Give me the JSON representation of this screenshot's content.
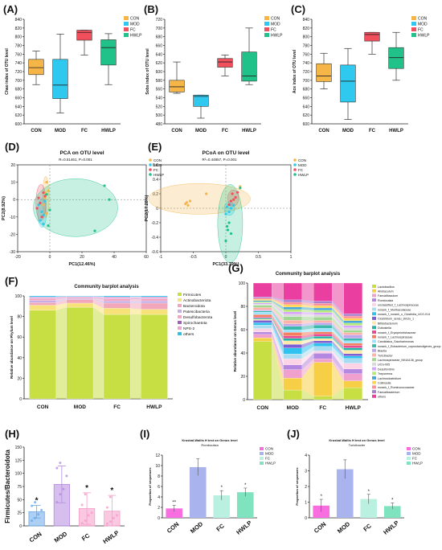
{
  "colors": {
    "CON": "#f5b547",
    "MOD": "#2fc9ef",
    "FC": "#f24f5d",
    "HWLP": "#21c28a"
  },
  "panels": [
    {
      "letter": "(A)",
      "ylabel": "Chao index of OTU level",
      "chart_data": {
        "type": "box",
        "categories": [
          "CON",
          "MOD",
          "FC",
          "HWLP"
        ],
        "legend": [
          "CON",
          "MOD",
          "FC",
          "HWLP"
        ],
        "ylim": [
          600,
          840
        ],
        "ticks": [
          600,
          620,
          640,
          660,
          680,
          700,
          720,
          740,
          760,
          780,
          800,
          820,
          840
        ],
        "boxes": [
          {
            "min": 690,
            "q1": 713,
            "median": 729,
            "q3": 748,
            "max": 767
          },
          {
            "min": 625,
            "q1": 658,
            "median": 689,
            "q3": 748,
            "max": 806
          },
          {
            "min": 758,
            "q1": 792,
            "median": 810,
            "q3": 815,
            "max": 815
          },
          {
            "min": 690,
            "q1": 735,
            "median": 775,
            "q3": 793,
            "max": 807
          }
        ]
      }
    },
    {
      "letter": "(B)",
      "ylabel": "Sobs index of OTU level",
      "chart_data": {
        "type": "box",
        "categories": [
          "CON",
          "MOD",
          "FC",
          "HWLP"
        ],
        "legend": [
          "CON",
          "MOD",
          "FC",
          "HWLP"
        ],
        "ylim": [
          480,
          720
        ],
        "ticks": [
          480,
          500,
          520,
          540,
          560,
          580,
          600,
          620,
          640,
          660,
          680,
          700,
          720
        ],
        "boxes": [
          {
            "min": 550,
            "q1": 553,
            "median": 565,
            "q3": 580,
            "max": 622
          },
          {
            "min": 493,
            "q1": 520,
            "median": 543,
            "q3": 546,
            "max": 546
          },
          {
            "min": 590,
            "q1": 610,
            "median": 622,
            "q3": 630,
            "max": 638
          },
          {
            "min": 570,
            "q1": 578,
            "median": 590,
            "q3": 645,
            "max": 700
          }
        ]
      }
    },
    {
      "letter": "(C)",
      "ylabel": "Ace index of OTU level",
      "chart_data": {
        "type": "box",
        "categories": [
          "CON",
          "MOD",
          "FC",
          "HWLP"
        ],
        "legend": [
          "CON",
          "MOD",
          "FC",
          "HWLP"
        ],
        "ylim": [
          600,
          840
        ],
        "ticks": [
          600,
          620,
          640,
          660,
          680,
          700,
          720,
          740,
          760,
          780,
          800,
          820,
          840
        ],
        "boxes": [
          {
            "min": 680,
            "q1": 697,
            "median": 710,
            "q3": 738,
            "max": 762
          },
          {
            "min": 610,
            "q1": 650,
            "median": 698,
            "q3": 735,
            "max": 773
          },
          {
            "min": 760,
            "q1": 790,
            "median": 805,
            "q3": 810,
            "max": 810
          },
          {
            "min": 700,
            "q1": 727,
            "median": 752,
            "q3": 775,
            "max": 810
          }
        ]
      }
    },
    {
      "letter": "(D)",
      "title": "PCA on OTU level",
      "stat": "R=0.51461, P=0.001",
      "xlabel": "PC1(12.46%)",
      "ylabel": "PC2(8.92%)",
      "chart_data": {
        "type": "scatter",
        "legend": [
          "CON",
          "MOD",
          "FC",
          "HWLP"
        ],
        "xlim": [
          -20,
          60
        ],
        "xticks": [
          -20,
          0,
          20,
          40,
          60
        ],
        "ylim": [
          -30,
          20
        ],
        "yticks": [
          -30,
          -20,
          -10,
          0,
          10,
          20
        ],
        "points": {
          "CON": [
            [
              -2,
              10
            ],
            [
              -1,
              5
            ],
            [
              -3,
              1
            ],
            [
              -4,
              -3
            ],
            [
              -2,
              -8
            ],
            [
              -3,
              4
            ]
          ],
          "MOD": [
            [
              -4,
              -9
            ],
            [
              -6,
              -12
            ],
            [
              -5,
              -7
            ],
            [
              -7,
              -3
            ],
            [
              -3,
              -1
            ],
            [
              -4,
              -14
            ]
          ],
          "FC": [
            [
              -6,
              -2
            ],
            [
              -4,
              4
            ],
            [
              -7,
              1
            ],
            [
              -3,
              2
            ],
            [
              -8,
              -5
            ],
            [
              -5,
              -10
            ]
          ],
          "HWLP": [
            [
              34,
              8
            ],
            [
              37,
              0
            ],
            [
              28,
              -18
            ],
            [
              -1,
              -15
            ],
            [
              -2,
              3
            ],
            [
              0,
              -6
            ]
          ]
        }
      }
    },
    {
      "letter": "(E)",
      "title": "PCoA on OTU level",
      "stat": "R²=0.44857, P=0.001",
      "xlabel": "PC1(33.79%)",
      "ylabel": "PC2(17.28%)",
      "chart_data": {
        "type": "scatter",
        "legend": [
          "CON",
          "MOD",
          "FC",
          "HWLP"
        ],
        "xlim": [
          -1,
          1
        ],
        "xticks": [
          -1,
          -0.5,
          0,
          0.5,
          1
        ],
        "ylim": [
          -0.6,
          0.6
        ],
        "yticks": [
          -0.6,
          -0.4,
          -0.2,
          0,
          0.2,
          0.4,
          0.6
        ],
        "points": {
          "CON": [
            [
              -0.6,
              0.08
            ],
            [
              -0.55,
              0.1
            ],
            [
              -0.58,
              0.04
            ],
            [
              -0.3,
              0.2
            ],
            [
              -0.62,
              0.06
            ],
            [
              0.22,
              0.3
            ]
          ],
          "MOD": [
            [
              0.05,
              -0.05
            ],
            [
              0.02,
              0.02
            ],
            [
              0.08,
              0.0
            ],
            [
              0.12,
              0.04
            ],
            [
              0.0,
              -0.08
            ],
            [
              0.06,
              0.05
            ]
          ],
          "FC": [
            [
              0.05,
              0.05
            ],
            [
              0.12,
              0.12
            ],
            [
              0.1,
              0.2
            ],
            [
              0.18,
              0.22
            ],
            [
              0.15,
              0.15
            ],
            [
              0.08,
              0.1
            ]
          ],
          "HWLP": [
            [
              0.0,
              -0.45
            ],
            [
              0.03,
              -0.3
            ],
            [
              0.05,
              -0.2
            ],
            [
              0.08,
              -0.35
            ],
            [
              0.02,
              -0.25
            ],
            [
              0.22,
              0.28
            ]
          ]
        }
      }
    },
    {
      "letter": "(F)",
      "title": "Community barplot analysis",
      "ylabel": "Relative abundance on Phylum level",
      "chart_data": {
        "type": "bar",
        "categories": [
          "CON",
          "MOD",
          "FC",
          "HWLP"
        ],
        "ylim": [
          0,
          100
        ],
        "yticks": [
          0,
          20,
          40,
          60,
          80,
          100
        ],
        "series": [
          {
            "name": "Firmicutes",
            "color": "#c8df44",
            "values": [
              86,
              89,
              82,
              82
            ]
          },
          {
            "name": "Actinobacteriota",
            "color": "#f7e27a",
            "values": [
              5,
              4,
              6,
              5
            ]
          },
          {
            "name": "Bacteroidota",
            "color": "#f2a6b9",
            "values": [
              2.5,
              3.5,
              5,
              6
            ]
          },
          {
            "name": "Patescibacteria",
            "color": "#c5aee6",
            "values": [
              2,
              1,
              2,
              2
            ]
          },
          {
            "name": "Desulfobacterota",
            "color": "#f4a5c4",
            "values": [
              2,
              1,
              2,
              2
            ]
          },
          {
            "name": "Spirochaetota",
            "color": "#9d5fc4",
            "values": [
              0.5,
              0.4,
              0.5,
              0.5
            ]
          },
          {
            "name": "NPS-2",
            "color": "#f4a0cf",
            "values": [
              1,
              0.6,
              1.5,
              1.5
            ]
          },
          {
            "name": "others",
            "color": "#25c4ef",
            "values": [
              1,
              0.5,
              1,
              1
            ]
          }
        ]
      }
    },
    {
      "letter": "(G)",
      "title": "Community barplot analysis",
      "ylabel": "Relative abundance on Genus level",
      "chart_data": {
        "type": "bar",
        "categories": [
          "CON",
          "MOD",
          "FC",
          "HWLP"
        ],
        "ylim": [
          0,
          100
        ],
        "yticks": [
          0,
          20,
          40,
          60,
          80,
          100
        ],
        "series": [
          {
            "name": "Lactobacillus",
            "color": "#c8df44",
            "values": [
              50,
              8,
              3,
              10
            ]
          },
          {
            "name": "Allobaculum",
            "color": "#f7cf46",
            "values": [
              3,
              10,
              30,
              6
            ]
          },
          {
            "name": "Faecalibaculum",
            "color": "#f0a0cc",
            "values": [
              3,
              7,
              3,
              6
            ]
          },
          {
            "name": "Romboutsia",
            "color": "#b487e0",
            "values": [
              2,
              4,
              5,
              4
            ]
          },
          {
            "name": "unclassified_f_Lachnospiraceae",
            "color": "#fdd3e6",
            "values": [
              3,
              5,
              2,
              5
            ]
          },
          {
            "name": "norank_f_Muribaculaceae",
            "color": "#a8dcf0",
            "values": [
              3,
              4,
              4,
              4
            ]
          },
          {
            "name": "norank_f_norank_o_Clostridia_UCG-014",
            "color": "#2ec2ef",
            "values": [
              2,
              5,
              3,
              2
            ]
          },
          {
            "name": "Clostridium_sensu_stricto_1",
            "color": "#7c5fd2",
            "values": [
              2,
              3,
              2,
              2
            ]
          },
          {
            "name": "Bifidobacterium",
            "color": "#ffe9a8",
            "values": [
              1,
              3,
              2,
              3
            ]
          },
          {
            "name": "Dubosiella",
            "color": "#22b4a4",
            "values": [
              1,
              2,
              2,
              2
            ]
          },
          {
            "name": "norank_f_Erysipelotrichaceae",
            "color": "#e64a94",
            "values": [
              1,
              2,
              2,
              2
            ]
          },
          {
            "name": "norank_f_Lachnospiraceae",
            "color": "#f57e5f",
            "values": [
              2,
              3,
              2,
              2
            ]
          },
          {
            "name": "Candidatus_Saccharimonas",
            "color": "#9be3ff",
            "values": [
              2,
              2,
              3,
              2
            ]
          },
          {
            "name": "norank_f_Eubacterium_coprostanoligenes_group",
            "color": "#3db8ad",
            "values": [
              1,
              3,
              3,
              2
            ]
          },
          {
            "name": "Blautia",
            "color": "#c0a7ec",
            "values": [
              1,
              2,
              2,
              3
            ]
          },
          {
            "name": "Turicibacter",
            "color": "#ffb2a6",
            "values": [
              2,
              3,
              2,
              2
            ]
          },
          {
            "name": "Lachnospiraceae_NK4A136_group",
            "color": "#a1d891",
            "values": [
              2,
              3,
              3,
              2
            ]
          },
          {
            "name": "UCG-005",
            "color": "#d9d9d9",
            "values": [
              1,
              2,
              2,
              2
            ]
          },
          {
            "name": "Desulfovibrio",
            "color": "#d7a4ff",
            "values": [
              1,
              2,
              2,
              2
            ]
          },
          {
            "name": "Treponema",
            "color": "#b4ea78",
            "values": [
              1,
              2,
              2,
              2
            ]
          },
          {
            "name": "Lachnoclostridium",
            "color": "#46a7d8",
            "values": [
              1,
              2,
              2,
              2
            ]
          },
          {
            "name": "Collinsella",
            "color": "#ffd54f",
            "values": [
              1,
              2,
              2,
              2
            ]
          },
          {
            "name": "norank_f_Ruminococcaceae",
            "color": "#ff8f98",
            "values": [
              1,
              2,
              2,
              2
            ]
          },
          {
            "name": "Faecalibacterium",
            "color": "#a87fcf",
            "values": [
              1,
              2,
              2,
              2
            ]
          },
          {
            "name": "others",
            "color": "#ea3fa0",
            "values": [
              12,
              14,
              16,
              26
            ]
          }
        ]
      }
    },
    {
      "letter": "(H)",
      "ylabel": "Firmicutes/Bacteroidota",
      "chart_data": {
        "type": "bar",
        "categories": [
          "CON",
          "MOD",
          "FC",
          "HWLP"
        ],
        "ylim": [
          0,
          150
        ],
        "yticks": [
          0,
          25,
          50,
          75,
          100,
          125,
          150
        ],
        "values": [
          27,
          79,
          33,
          28
        ],
        "errors": [
          12,
          35,
          30,
          30
        ],
        "colors": [
          "#69a8ea",
          "#b58be0",
          "#f59cc8",
          "#f59cc8"
        ],
        "sig": [
          "*",
          "",
          "*",
          "*"
        ],
        "points": [
          [
            10,
            15,
            22,
            30,
            38,
            45
          ],
          [
            45,
            60,
            70,
            95,
            110,
            120
          ],
          [
            5,
            10,
            20,
            25,
            40,
            60
          ],
          [
            4,
            8,
            15,
            20,
            35,
            55
          ]
        ]
      }
    },
    {
      "letter": "(I)",
      "title": "Kruskal-Wallis H test on Genus level",
      "subtitle": "Romboutsia",
      "ylabel": "Proportion of sequences",
      "chart_data": {
        "type": "bar",
        "categories": [
          "CON",
          "MOD",
          "FC",
          "HWLP"
        ],
        "legend": [
          "CON",
          "MOD",
          "FC",
          "HWLP"
        ],
        "ylim": [
          0,
          12
        ],
        "yticks": [
          0,
          2,
          4,
          6,
          8,
          10,
          12
        ],
        "values": [
          1.8,
          9.7,
          4.3,
          4.9
        ],
        "errors": [
          0.6,
          1.6,
          0.9,
          0.8
        ],
        "colors": [
          "#f86ee0",
          "#a9b4ef",
          "#b9f0df",
          "#7fe3bf"
        ],
        "sig": [
          "**",
          "",
          "*",
          "*"
        ]
      }
    },
    {
      "letter": "(J)",
      "title": "Kruskal-Wallis H test on Genus level",
      "subtitle": "Turicibacter",
      "ylabel": "Proportion of sequences",
      "chart_data": {
        "type": "bar",
        "categories": [
          "CON",
          "MOD",
          "FC",
          "HWLP"
        ],
        "legend": [
          "CON",
          "MOD",
          "FC",
          "HWLP"
        ],
        "ylim": [
          0,
          4
        ],
        "yticks": [
          0,
          1,
          2,
          3,
          4
        ],
        "values": [
          0.78,
          3.1,
          1.2,
          0.75
        ],
        "errors": [
          0.4,
          0.6,
          0.3,
          0.2
        ],
        "colors": [
          "#f86ee0",
          "#a9b4ef",
          "#b9f0df",
          "#7fe3bf"
        ],
        "sig": [
          "*",
          "",
          "*",
          "*"
        ]
      }
    }
  ]
}
